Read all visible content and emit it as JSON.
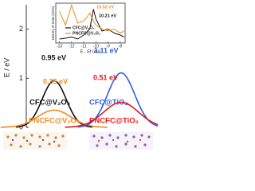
{
  "chart_data": [
    {
      "type": "peak",
      "ylabel": "E / eV",
      "ylim": [
        0,
        2.5
      ],
      "yticks": [
        0,
        1,
        2
      ],
      "series": [
        {
          "name": "CFC@V₂O₅",
          "color": "#111111",
          "values": [
            0.95
          ],
          "value_labels": [
            "0.95 eV"
          ]
        },
        {
          "name": "PNCFC@V₂O₅",
          "color": "#f08a1c",
          "values": [
            0.35
          ],
          "value_labels": [
            "0.35 eV"
          ]
        },
        {
          "name": "CFC@TiO₂",
          "color": "#2f5fe0",
          "values": [
            1.11
          ],
          "value_labels": [
            "1.11 eV"
          ]
        },
        {
          "name": "PNCFC@TiO₂",
          "color": "#e8141c",
          "values": [
            0.51
          ],
          "value_labels": [
            "0.51 eV"
          ]
        }
      ]
    },
    {
      "type": "line",
      "xlabel": "E - Ef (eV)",
      "ylabel": "Density of State (DOS)",
      "xlim": [
        -13.3,
        -7.6
      ],
      "xticks": [
        -13,
        -12,
        -11,
        -10,
        -9,
        -8
      ],
      "ylim": [
        0,
        1
      ],
      "x": [
        -13,
        -12.5,
        -12,
        -11.5,
        -11,
        -10.5,
        -10.2,
        -10,
        -9.5,
        -9,
        -8.5,
        -8,
        -7.7
      ],
      "series": [
        {
          "name": "CFC@V₂O₅",
          "color": "#111111",
          "values": [
            0.1,
            0.12,
            0.15,
            0.1,
            0.2,
            0.35,
            0.85,
            0.6,
            0.3,
            0.35,
            0.25,
            0.2,
            0.15
          ]
        },
        {
          "name": "PNCFC@V₂O₅",
          "color": "#f08a1c",
          "values": [
            0.8,
            0.45,
            0.95,
            0.5,
            0.55,
            0.75,
            0.55,
            0.45,
            0.35,
            0.3,
            0.35,
            0.25,
            0.3
          ]
        }
      ],
      "annotations": [
        {
          "text": "10.52 eV",
          "color": "#f08a1c"
        },
        {
          "text": "10.21 eV",
          "color": "#111111"
        }
      ]
    }
  ]
}
